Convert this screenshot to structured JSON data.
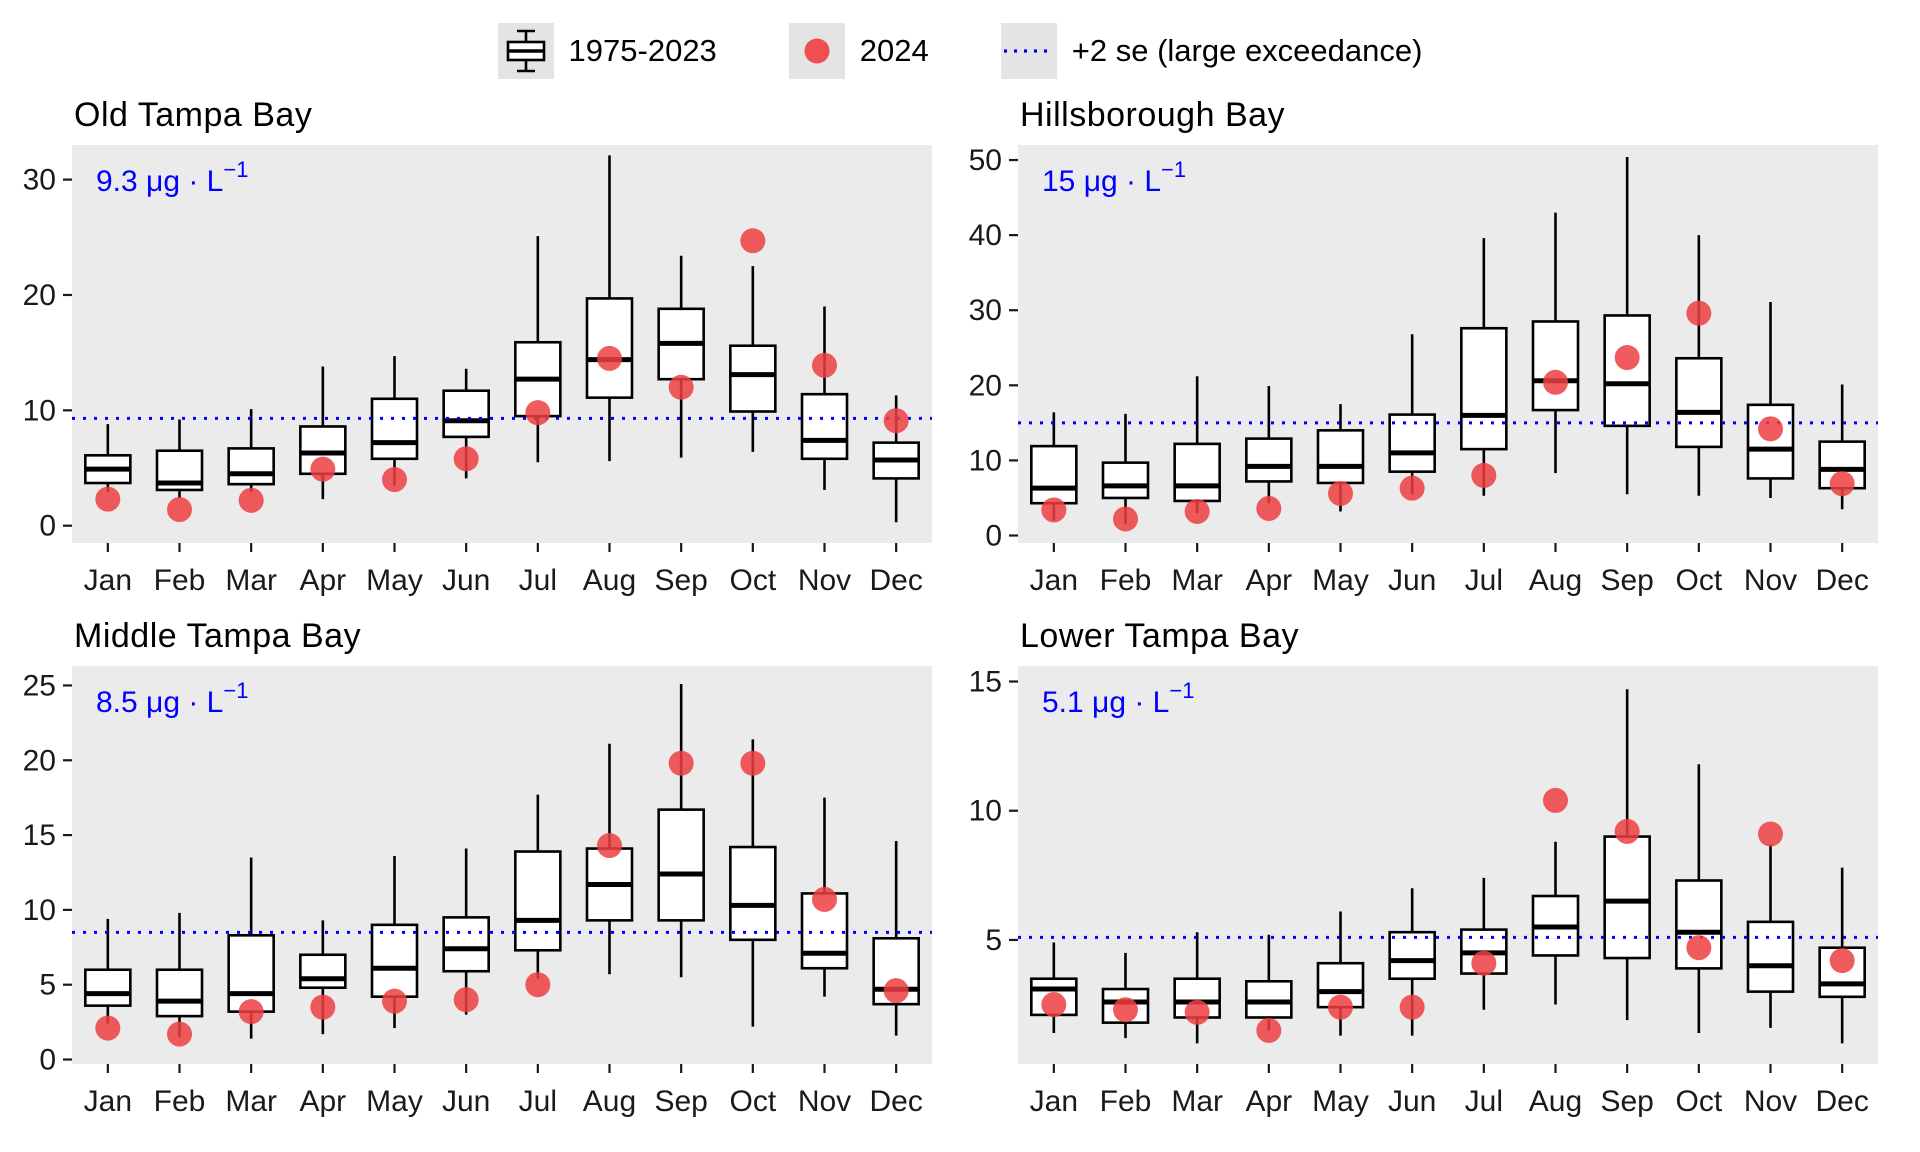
{
  "legend": {
    "items": [
      {
        "key": "boxplot",
        "label": "1975-2023"
      },
      {
        "key": "dot",
        "label": "2024"
      },
      {
        "key": "dotted-line",
        "label": "+2 se (large exceedance)"
      }
    ]
  },
  "colors": {
    "panel_bg": "#EBEBEB",
    "box_fill": "#FFFFFF",
    "box_stroke": "#000000",
    "median_stroke": "#000000",
    "dot_fill": "#ED3E42",
    "reference_blue": "#0000FF",
    "annotation_blue": "#0000FF",
    "axis_text": "#1a1a1a",
    "legend_key_bg": "#E4E4E4"
  },
  "chart_data": [
    {
      "type": "boxplot",
      "title": "Old Tampa Bay",
      "annotation": {
        "value": "9.3",
        "unit": "μg · L",
        "exponent": "−1"
      },
      "reference_line": 9.3,
      "ylim": [
        -1.5,
        33
      ],
      "yticks": [
        0,
        10,
        20,
        30
      ],
      "categories": [
        "Jan",
        "Feb",
        "Mar",
        "Apr",
        "May",
        "Jun",
        "Jul",
        "Aug",
        "Sep",
        "Oct",
        "Nov",
        "Dec"
      ],
      "series": [
        {
          "name": "1975-2023",
          "type": "box",
          "whisker_low": [
            2.9,
            2.4,
            2.9,
            2.3,
            3.5,
            4.1,
            5.5,
            5.6,
            5.9,
            6.4,
            3.1,
            0.3
          ],
          "q1": [
            3.7,
            3.1,
            3.6,
            4.5,
            5.8,
            7.7,
            9.5,
            11.1,
            12.7,
            9.9,
            5.8,
            4.1
          ],
          "median": [
            4.9,
            3.7,
            4.5,
            6.3,
            7.2,
            9.1,
            12.7,
            14.4,
            15.8,
            13.1,
            7.4,
            5.7
          ],
          "q3": [
            6.1,
            6.5,
            6.7,
            8.6,
            11.0,
            11.7,
            15.9,
            19.7,
            18.8,
            15.6,
            11.4,
            7.2
          ],
          "whisker_high": [
            8.8,
            9.2,
            10.1,
            13.8,
            14.7,
            13.6,
            25.1,
            32.1,
            23.4,
            22.5,
            19.0,
            11.3
          ]
        },
        {
          "name": "2024",
          "type": "points",
          "values": [
            2.3,
            1.4,
            2.2,
            4.9,
            4.0,
            5.8,
            9.8,
            14.5,
            12.0,
            24.7,
            13.9,
            9.1
          ]
        }
      ]
    },
    {
      "type": "boxplot",
      "title": "Hillsborough Bay",
      "annotation": {
        "value": "15",
        "unit": "μg · L",
        "exponent": "−1"
      },
      "reference_line": 15,
      "ylim": [
        -1,
        52
      ],
      "yticks": [
        0,
        10,
        20,
        30,
        40,
        50
      ],
      "categories": [
        "Jan",
        "Feb",
        "Mar",
        "Apr",
        "May",
        "Jun",
        "Jul",
        "Aug",
        "Sep",
        "Oct",
        "Nov",
        "Dec"
      ],
      "series": [
        {
          "name": "1975-2023",
          "type": "box",
          "whisker_low": [
            2.0,
            1.5,
            3.0,
            4.3,
            3.2,
            5.5,
            5.3,
            8.3,
            5.5,
            5.3,
            5.0,
            3.5
          ],
          "q1": [
            4.3,
            5.0,
            4.6,
            7.2,
            7.0,
            8.5,
            11.5,
            16.7,
            14.6,
            11.8,
            7.6,
            6.3
          ],
          "median": [
            6.3,
            6.6,
            6.6,
            9.2,
            9.2,
            11.0,
            16.0,
            20.6,
            20.2,
            16.4,
            11.5,
            8.8
          ],
          "q3": [
            11.9,
            9.7,
            12.2,
            12.9,
            14.0,
            16.1,
            27.6,
            28.5,
            29.3,
            23.6,
            17.4,
            12.5
          ],
          "whisker_high": [
            16.4,
            16.2,
            21.2,
            19.9,
            17.5,
            26.8,
            39.6,
            43.0,
            50.4,
            40.0,
            31.1,
            20.1
          ]
        },
        {
          "name": "2024",
          "type": "points",
          "values": [
            3.4,
            2.2,
            3.2,
            3.6,
            5.6,
            6.3,
            8.0,
            20.4,
            23.7,
            29.6,
            14.2,
            6.9
          ]
        }
      ]
    },
    {
      "type": "boxplot",
      "title": "Middle Tampa Bay",
      "annotation": {
        "value": "8.5",
        "unit": "μg · L",
        "exponent": "−1"
      },
      "reference_line": 8.5,
      "ylim": [
        -0.3,
        26.3
      ],
      "yticks": [
        0,
        5,
        10,
        15,
        20,
        25
      ],
      "categories": [
        "Jan",
        "Feb",
        "Mar",
        "Apr",
        "May",
        "Jun",
        "Jul",
        "Aug",
        "Sep",
        "Oct",
        "Nov",
        "Dec"
      ],
      "series": [
        {
          "name": "1975-2023",
          "type": "box",
          "whisker_low": [
            2.4,
            1.5,
            1.4,
            1.7,
            2.1,
            3.0,
            5.4,
            5.7,
            5.5,
            2.2,
            4.2,
            1.6
          ],
          "q1": [
            3.6,
            2.9,
            3.2,
            4.8,
            4.2,
            5.9,
            7.3,
            9.3,
            9.3,
            8.0,
            6.1,
            3.7
          ],
          "median": [
            4.4,
            3.9,
            4.4,
            5.4,
            6.1,
            7.4,
            9.3,
            11.7,
            12.4,
            10.3,
            7.1,
            4.7
          ],
          "q3": [
            6.0,
            6.0,
            8.3,
            7.0,
            9.0,
            9.5,
            13.9,
            14.1,
            16.7,
            14.2,
            11.1,
            8.1
          ],
          "whisker_high": [
            9.4,
            9.8,
            13.5,
            9.3,
            13.6,
            14.1,
            17.7,
            21.1,
            25.1,
            21.4,
            17.5,
            14.6
          ]
        },
        {
          "name": "2024",
          "type": "points",
          "values": [
            2.1,
            1.7,
            3.2,
            3.5,
            3.9,
            4.0,
            5.0,
            14.3,
            19.8,
            19.8,
            10.7,
            4.6
          ]
        }
      ]
    },
    {
      "type": "boxplot",
      "title": "Lower Tampa Bay",
      "annotation": {
        "value": "5.1",
        "unit": "μg · L",
        "exponent": "−1"
      },
      "reference_line": 5.1,
      "ylim": [
        0.2,
        15.6
      ],
      "yticks": [
        5,
        10,
        15
      ],
      "categories": [
        "Jan",
        "Feb",
        "Mar",
        "Apr",
        "May",
        "Jun",
        "Jul",
        "Aug",
        "Sep",
        "Oct",
        "Nov",
        "Dec"
      ],
      "series": [
        {
          "name": "1975-2023",
          "type": "box",
          "whisker_low": [
            1.4,
            1.2,
            1.0,
            1.5,
            1.3,
            1.3,
            2.3,
            2.5,
            1.9,
            1.4,
            1.6,
            1.0
          ],
          "q1": [
            2.1,
            1.8,
            2.0,
            2.0,
            2.4,
            3.5,
            3.7,
            4.4,
            4.3,
            3.9,
            3.0,
            2.8
          ],
          "median": [
            3.1,
            2.6,
            2.6,
            2.6,
            3.0,
            4.2,
            4.5,
            5.5,
            6.5,
            5.3,
            4.0,
            3.3
          ],
          "q3": [
            3.5,
            3.1,
            3.5,
            3.4,
            4.1,
            5.3,
            5.4,
            6.7,
            9.0,
            7.3,
            5.7,
            4.7
          ],
          "whisker_high": [
            4.9,
            4.5,
            5.3,
            5.2,
            6.1,
            7.0,
            7.4,
            8.8,
            14.7,
            11.8,
            8.7,
            7.8
          ]
        },
        {
          "name": "2024",
          "type": "points",
          "values": [
            2.5,
            2.3,
            2.2,
            1.5,
            2.4,
            2.4,
            4.1,
            10.4,
            9.2,
            4.7,
            9.1,
            4.2
          ]
        }
      ]
    }
  ]
}
